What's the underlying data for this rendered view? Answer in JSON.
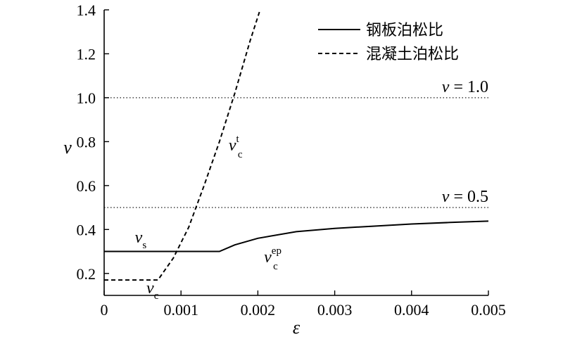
{
  "chart_data": {
    "type": "line",
    "xlabel": "ε",
    "ylabel": "ν",
    "xlim": [
      0,
      0.005
    ],
    "ylim": [
      0.1,
      1.4
    ],
    "xticks": [
      {
        "value": 0,
        "label": "0"
      },
      {
        "value": 0.001,
        "label": "0.001"
      },
      {
        "value": 0.002,
        "label": "0.002"
      },
      {
        "value": 0.003,
        "label": "0.003"
      },
      {
        "value": 0.004,
        "label": "0.004"
      },
      {
        "value": 0.005,
        "label": "0.005"
      }
    ],
    "yticks": [
      {
        "value": 0.2,
        "label": "0.2"
      },
      {
        "value": 0.4,
        "label": "0.4"
      },
      {
        "value": 0.6,
        "label": "0.6"
      },
      {
        "value": 0.8,
        "label": "0.8"
      },
      {
        "value": 1.0,
        "label": "1.0"
      },
      {
        "value": 1.2,
        "label": "1.2"
      },
      {
        "value": 1.4,
        "label": "1.4"
      }
    ],
    "legend_position": "top-right",
    "series": [
      {
        "name": "钢板泊松比",
        "style": "solid",
        "x": [
          0,
          0.0015,
          0.0017,
          0.002,
          0.0025,
          0.003,
          0.0035,
          0.004,
          0.0045,
          0.005
        ],
        "y": [
          0.3,
          0.3,
          0.33,
          0.36,
          0.39,
          0.405,
          0.415,
          0.425,
          0.432,
          0.438
        ]
      },
      {
        "name": "混凝土泊松比",
        "style": "dashed",
        "x": [
          0,
          0.0007,
          0.0009,
          0.0011,
          0.0013,
          0.0015,
          0.0017,
          0.0019,
          0.00202
        ],
        "y": [
          0.17,
          0.17,
          0.27,
          0.41,
          0.6,
          0.8,
          1.02,
          1.26,
          1.39
        ]
      }
    ],
    "reference_lines": [
      {
        "y": 1.0,
        "var": "ν",
        "text": " = 1.0"
      },
      {
        "y": 0.5,
        "var": "ν",
        "text": " = 0.5"
      }
    ],
    "annotations": [
      {
        "id": "vs",
        "at": [
          0.0004,
          0.34
        ],
        "base": "ν",
        "sub": "s",
        "sup": ""
      },
      {
        "id": "vct",
        "at": [
          0.00162,
          0.76
        ],
        "base": "ν",
        "sub": "c",
        "sup": "t"
      },
      {
        "id": "vcep",
        "at": [
          0.00208,
          0.25
        ],
        "base": "ν",
        "sub": "c",
        "sup": "ep"
      },
      {
        "id": "vc",
        "at": [
          0.00055,
          0.11
        ],
        "base": "ν",
        "sub": "c",
        "sup": ""
      }
    ]
  }
}
